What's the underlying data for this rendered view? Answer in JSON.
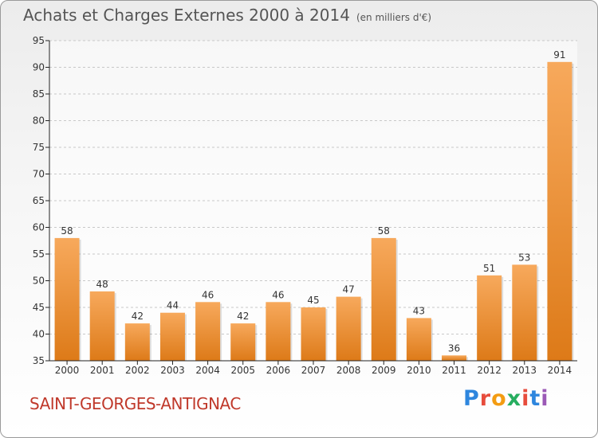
{
  "header": {
    "title": "Achats et Charges Externes 2000 à 2014",
    "unit": "(en milliers d'€)"
  },
  "footer": {
    "commune": "SAINT-GEORGES-ANTIGNAC",
    "logo_text": "Proxiti",
    "logo_colors": [
      "#2e86de",
      "#e74c3c",
      "#f39c12",
      "#27ae60",
      "#e74c3c",
      "#2e86de",
      "#9b59b6"
    ]
  },
  "colors": {
    "bar_light": "#f7a95c",
    "bar_dark": "#dd7a18",
    "grid": "#c8c8c8",
    "axis": "#222222",
    "text": "#333333"
  },
  "chart_data": {
    "type": "bar",
    "categories": [
      "2000",
      "2001",
      "2002",
      "2003",
      "2004",
      "2005",
      "2006",
      "2007",
      "2008",
      "2009",
      "2010",
      "2011",
      "2012",
      "2013",
      "2014"
    ],
    "values": [
      58,
      48,
      42,
      44,
      46,
      42,
      46,
      45,
      47,
      58,
      43,
      36,
      51,
      53,
      91
    ],
    "ylim": [
      35,
      95
    ],
    "yticks": [
      35,
      40,
      45,
      50,
      55,
      60,
      65,
      70,
      75,
      80,
      85,
      90,
      95
    ],
    "grid": true
  }
}
